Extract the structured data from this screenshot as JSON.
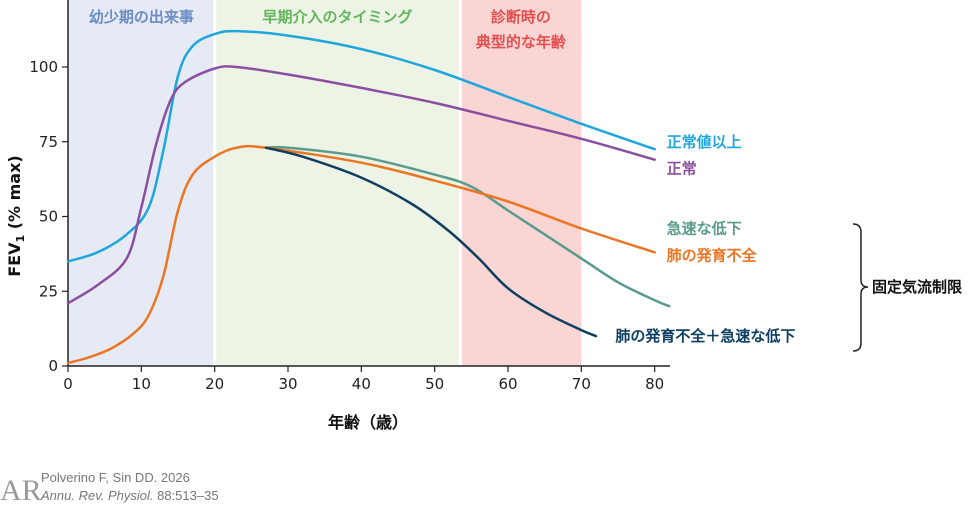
{
  "chart_data": {
    "type": "line",
    "xlabel": "年齢（歳）",
    "ylabel_main": "FEV",
    "ylabel_sub": "1",
    "ylabel_suffix": " (% max)",
    "xlim": [
      0,
      82
    ],
    "ylim": [
      0,
      120
    ],
    "x_ticks": [
      0,
      10,
      20,
      30,
      40,
      50,
      60,
      70,
      80
    ],
    "y_ticks": [
      0,
      25,
      50,
      75,
      100
    ],
    "regions": [
      {
        "label": "幼少期の出来事",
        "x_start": 0,
        "x_end": 20,
        "color": "#e6eaf4",
        "label_color": "#6b8cc4"
      },
      {
        "label": "早期介入のタイミング",
        "x_start": 20,
        "x_end": 53.5,
        "color": "#edf4e6",
        "label_color": "#63b55c"
      },
      {
        "label_lines": [
          "診断時の",
          "典型的な年齢"
        ],
        "x_start": 53.5,
        "x_end": 70,
        "color": "#f9d6d4",
        "label_color": "#e2504f"
      }
    ],
    "series": [
      {
        "name": "正常値以上",
        "color": "#1fa6dc",
        "width": 2.5,
        "points": [
          [
            0,
            35
          ],
          [
            4,
            38
          ],
          [
            8,
            44
          ],
          [
            11,
            53
          ],
          [
            13,
            72
          ],
          [
            15,
            97
          ],
          [
            17,
            107
          ],
          [
            20,
            111
          ],
          [
            23,
            112
          ],
          [
            30,
            110.5
          ],
          [
            40,
            106
          ],
          [
            50,
            99
          ],
          [
            60,
            90
          ],
          [
            70,
            81
          ],
          [
            80,
            72.5
          ]
        ]
      },
      {
        "name": "正常",
        "color": "#8a4fa0",
        "width": 2.5,
        "points": [
          [
            0,
            21
          ],
          [
            4,
            27
          ],
          [
            8,
            36
          ],
          [
            10,
            53
          ],
          [
            12,
            74
          ],
          [
            14,
            89
          ],
          [
            16,
            95
          ],
          [
            20,
            99.5
          ],
          [
            23,
            100
          ],
          [
            30,
            97.5
          ],
          [
            40,
            93
          ],
          [
            50,
            88
          ],
          [
            60,
            82
          ],
          [
            70,
            76
          ],
          [
            80,
            69
          ]
        ]
      },
      {
        "name": "急速な低下",
        "color": "#5a9b8d",
        "width": 2.5,
        "points": [
          [
            27,
            73
          ],
          [
            30,
            73
          ],
          [
            40,
            70
          ],
          [
            50,
            64
          ],
          [
            55,
            60
          ],
          [
            60,
            52
          ],
          [
            65,
            44
          ],
          [
            70,
            36
          ],
          [
            75,
            28
          ],
          [
            80,
            22
          ],
          [
            82,
            20
          ]
        ]
      },
      {
        "name": "肺の発育不全",
        "color": "#ec7524",
        "width": 2.5,
        "points": [
          [
            0,
            1
          ],
          [
            3,
            3
          ],
          [
            6,
            6
          ],
          [
            9,
            11
          ],
          [
            11,
            17
          ],
          [
            13,
            30
          ],
          [
            15,
            52
          ],
          [
            17,
            64
          ],
          [
            20,
            70
          ],
          [
            23,
            73
          ],
          [
            27,
            73
          ],
          [
            40,
            68
          ],
          [
            50,
            62
          ],
          [
            60,
            55
          ],
          [
            70,
            46
          ],
          [
            80,
            38
          ]
        ]
      },
      {
        "name": "肺の発育不全＋急速な低下",
        "color": "#0f3f60",
        "width": 2.5,
        "points": [
          [
            27,
            73
          ],
          [
            32,
            70
          ],
          [
            40,
            63
          ],
          [
            47,
            54
          ],
          [
            52,
            45
          ],
          [
            56,
            36
          ],
          [
            60,
            26
          ],
          [
            65,
            18
          ],
          [
            70,
            12
          ],
          [
            72,
            10
          ]
        ]
      }
    ],
    "series_label_positions": {
      "正常値以上": [
        80,
        75
      ],
      "正常": [
        80,
        66
      ],
      "急速な低下": [
        80,
        46
      ],
      "肺の発育不全": [
        80,
        37
      ],
      "肺の発育不全＋急速な低下": [
        73,
        10
      ]
    },
    "brace_label": "固定気流制限"
  },
  "citation": {
    "logo": "AR",
    "line1": "Polverino F, Sin DD. 2026",
    "line2_italic": "Annu. Rev. Physiol.",
    "line2_rest": " 88:513–35"
  }
}
